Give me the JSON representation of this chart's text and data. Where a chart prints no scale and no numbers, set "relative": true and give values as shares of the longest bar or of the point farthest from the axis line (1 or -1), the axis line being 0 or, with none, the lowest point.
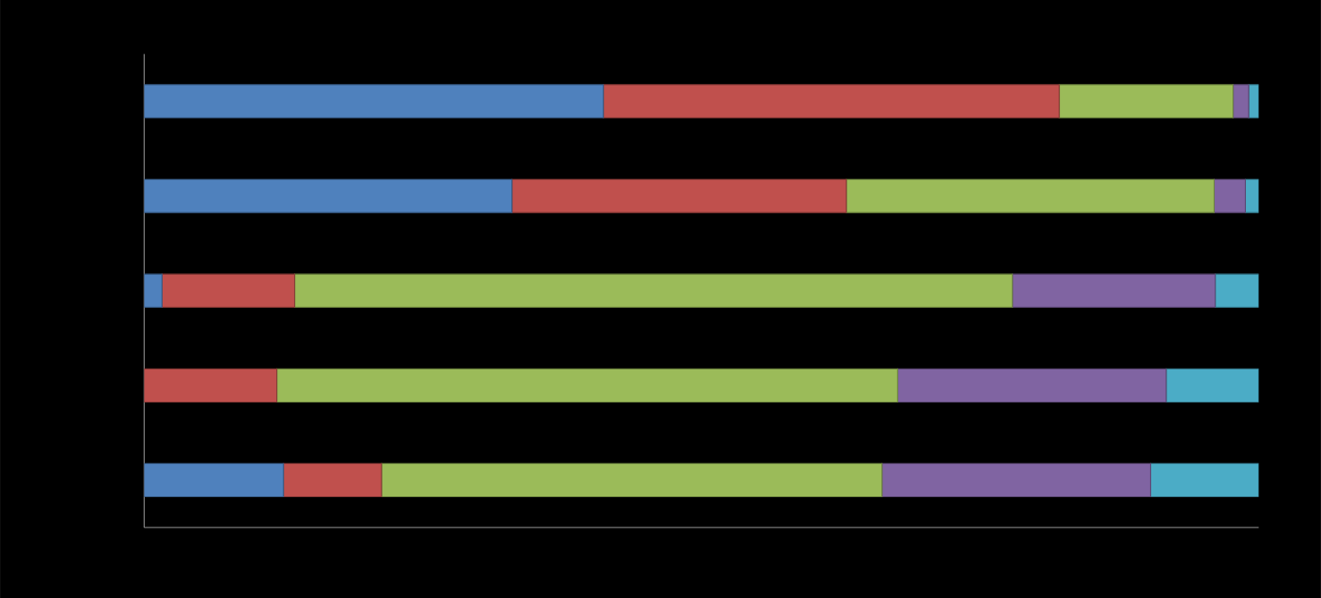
{
  "chart_data": {
    "type": "bar",
    "orientation": "horizontal",
    "stacked": true,
    "relative": true,
    "categories": [
      null,
      null,
      null,
      null,
      null
    ],
    "series": [
      {
        "color": "#4f81bd",
        "values": [
          0.412,
          0.33,
          0.016,
          0,
          0.125
        ]
      },
      {
        "color": "#c0504d",
        "values": [
          0.409,
          0.3,
          0.119,
          0.119,
          0.088
        ]
      },
      {
        "color": "#9bbb59",
        "values": [
          0.156,
          0.33,
          0.644,
          0.557,
          0.449
        ]
      },
      {
        "color": "#8064a2",
        "values": [
          0.014,
          0.028,
          0.182,
          0.241,
          0.241
        ]
      },
      {
        "color": "#4bacc6",
        "values": [
          0.009,
          0.012,
          0.039,
          0.083,
          0.097
        ]
      }
    ]
  }
}
